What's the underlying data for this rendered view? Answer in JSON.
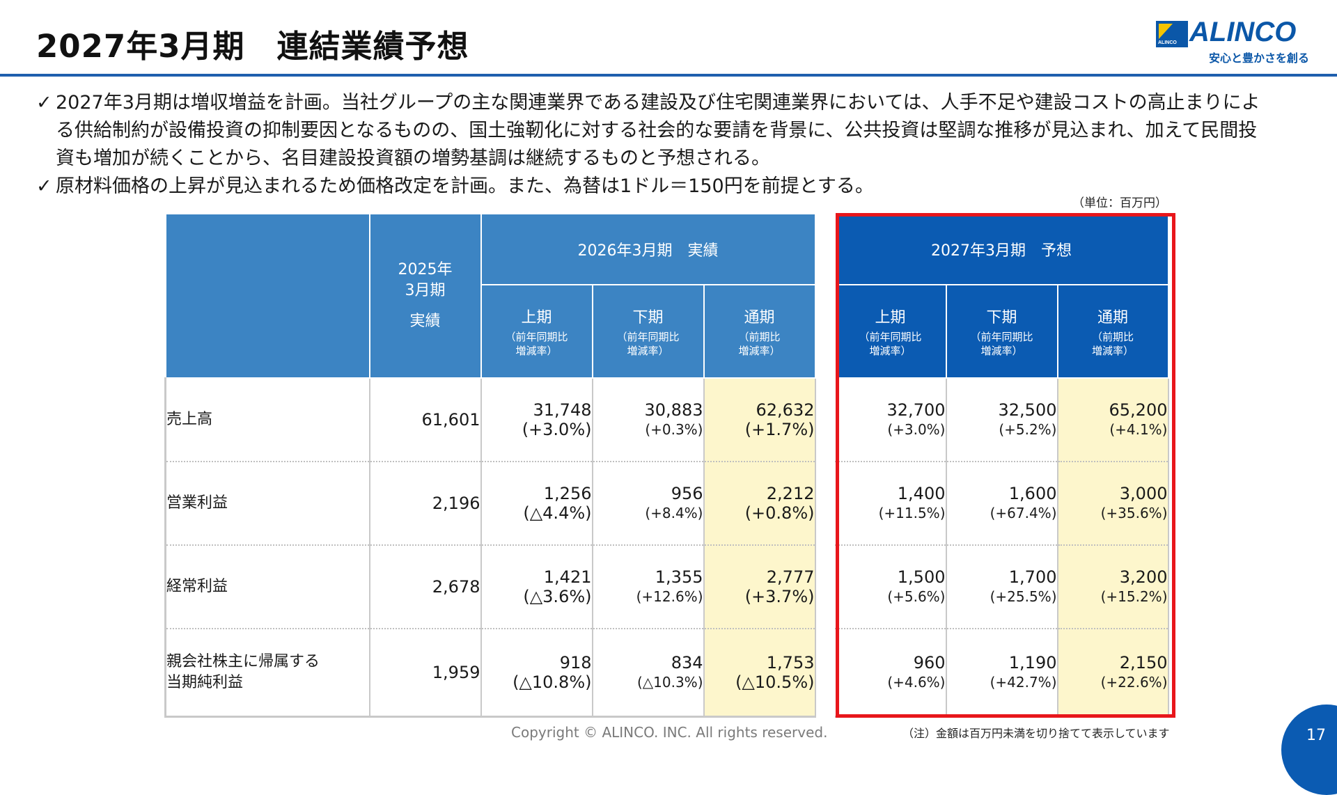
{
  "title": "2027年3月期　連結業績予想",
  "logo": {
    "name": "ALINCO",
    "mark_text": "ALINCO",
    "tagline": "安心と豊かさを創る",
    "colors": {
      "brand": "#0b57a8",
      "accent": "#f5c400"
    }
  },
  "bullets": [
    {
      "check": "✓",
      "text": "2027年3月期は増収増益を計画。当社グループの主な関連業界である建設及び住宅関連業界においては、人手不足や建設コストの高止まりによる供給制約が設備投資の抑制要因となるものの、国土強靭化に対する社会的な要請を背景に、公共投資は堅調な推移が見込まれ、加えて民間投資も増加が続くことから、名目建設投資額の増勢基調は継続するものと予想される。"
    },
    {
      "check": "✓",
      "text": "原材料価格の上昇が見込まれるため価格改定を計画。また、為替は1ドル＝150円を前提とする。"
    }
  ],
  "unit": "（単位：百万円）",
  "table": {
    "header": {
      "fy2025_line1": "2025年",
      "fy2025_line2": "3月期",
      "fy2025_line3": "実績",
      "fy2026_group": "2026年3月期　実績",
      "fy2027_group": "2027年3月期　予想",
      "h1": "上期",
      "h2": "下期",
      "full": "通期",
      "note_yoy_1": "（前年同期比",
      "note_yoy_2": "増減率）",
      "note_fy_1": "（前期比",
      "note_fy_2": "増減率）"
    },
    "rows": [
      {
        "label_1": "売上高",
        "label_2": "",
        "fy25": "61,601",
        "a_h1": "31,748",
        "a_h1_r": "(+3.0%)",
        "a_h2": "30,883",
        "a_h2_r": "(+0.3%)",
        "a_fy": "62,632",
        "a_fy_r": "(+1.7%)",
        "f_h1": "32,700",
        "f_h1_r": "(+3.0%)",
        "f_h2": "32,500",
        "f_h2_r": "(+5.2%)",
        "f_fy": "65,200",
        "f_fy_r": "(+4.1%)"
      },
      {
        "label_1": "営業利益",
        "label_2": "",
        "fy25": "2,196",
        "a_h1": "1,256",
        "a_h1_r": "(△4.4%)",
        "a_h2": "956",
        "a_h2_r": "(+8.4%)",
        "a_fy": "2,212",
        "a_fy_r": "(+0.8%)",
        "f_h1": "1,400",
        "f_h1_r": "(+11.5%)",
        "f_h2": "1,600",
        "f_h2_r": "(+67.4%)",
        "f_fy": "3,000",
        "f_fy_r": "(+35.6%)"
      },
      {
        "label_1": "経常利益",
        "label_2": "",
        "fy25": "2,678",
        "a_h1": "1,421",
        "a_h1_r": "(△3.6%)",
        "a_h2": "1,355",
        "a_h2_r": "(+12.6%)",
        "a_fy": "2,777",
        "a_fy_r": "(+3.7%)",
        "f_h1": "1,500",
        "f_h1_r": "(+5.6%)",
        "f_h2": "1,700",
        "f_h2_r": "(+25.5%)",
        "f_fy": "3,200",
        "f_fy_r": "(+15.2%)"
      },
      {
        "label_1": "親会社株主に帰属する",
        "label_2": "当期純利益",
        "fy25": "1,959",
        "a_h1": "918",
        "a_h1_r": "(△10.8%)",
        "a_h2": "834",
        "a_h2_r": "(△10.3%)",
        "a_fy": "1,753",
        "a_fy_r": "(△10.5%)",
        "f_h1": "960",
        "f_h1_r": "(+4.6%)",
        "f_h2": "1,190",
        "f_h2_r": "(+42.7%)",
        "f_fy": "2,150",
        "f_fy_r": "(+22.6%)"
      }
    ]
  },
  "footer": {
    "copyright": "Copyright © ALINCO. INC. All rights reserved.",
    "note": "（注）金額は百万円未満を切り捨てて表示しています",
    "page": "17"
  },
  "colors": {
    "header_actual": "#3c84c3",
    "header_forecast": "#0b5bb2",
    "full_year_fill": "#fdf6cc",
    "highlight_border": "#e8161b",
    "title_rule": "#1f5fae"
  }
}
